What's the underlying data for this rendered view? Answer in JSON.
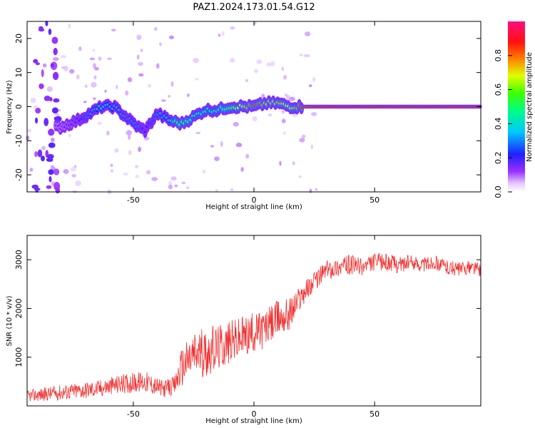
{
  "figure": {
    "title": "PAZ1.2024.173.01.54.G12"
  },
  "chart_data": [
    {
      "type": "heatmap",
      "title": "PAZ1.2024.173.01.54.G12",
      "xlabel": "Height of straight line (km)",
      "ylabel": "Frequency (Hz)",
      "xlim": [
        -94,
        94
      ],
      "ylim": [
        -25,
        25
      ],
      "x_ticks": [
        -50,
        0,
        50
      ],
      "y_ticks": [
        -20,
        -10,
        0,
        10,
        20
      ],
      "colorbar": {
        "label": "Normalized spectral amplitude",
        "ticks": [
          0.0,
          0.2,
          0.4,
          0.6,
          0.8
        ],
        "range": [
          0,
          1
        ],
        "colormap": "gist_rainbow"
      },
      "ridge": {
        "description_points_x_km": [
          -80,
          -73,
          -68,
          -63,
          -58,
          -53,
          -48,
          -45,
          -40,
          -35,
          -30,
          -25,
          -20,
          -15,
          -10,
          -5,
          0,
          5,
          10,
          15,
          20,
          30,
          40,
          50,
          60,
          70,
          80,
          90
        ],
        "frequency_hz": [
          -6,
          -4,
          -2,
          0,
          0,
          -3,
          -6,
          -7,
          -2,
          -4,
          -5,
          -3,
          -1,
          -1,
          0,
          0,
          0,
          1,
          1,
          0,
          0,
          0,
          0,
          0,
          0,
          0,
          0,
          0
        ],
        "amplitude": [
          0.15,
          0.2,
          0.3,
          0.4,
          0.35,
          0.3,
          0.3,
          0.2,
          0.3,
          0.4,
          0.55,
          0.45,
          0.45,
          0.45,
          0.55,
          0.7,
          0.85,
          0.75,
          0.75,
          0.7,
          0.85,
          0.9,
          0.9,
          0.9,
          0.9,
          0.9,
          0.9,
          0.9
        ]
      }
    },
    {
      "type": "line",
      "xlabel": "Height of straight line (km)",
      "ylabel": "SNR (10 * v/v)",
      "xlim": [
        -94,
        94
      ],
      "ylim": [
        0,
        3500
      ],
      "x_ticks": [
        -50,
        0,
        50
      ],
      "y_ticks": [
        1000,
        2000,
        3000
      ],
      "line_color": "#f03030",
      "series": [
        {
          "x": [
            -94,
            -85,
            -75,
            -65,
            -55,
            -45,
            -38,
            -33,
            -30,
            -25,
            -20,
            -15,
            -10,
            -5,
            0,
            5,
            10,
            15,
            20,
            25,
            30,
            35,
            40,
            45,
            50,
            55,
            60,
            65,
            70,
            75,
            80,
            85,
            90,
            94
          ],
          "y": [
            200,
            250,
            300,
            350,
            450,
            500,
            350,
            400,
            800,
            1050,
            1100,
            1200,
            1300,
            1400,
            1500,
            1600,
            1800,
            1900,
            2300,
            2550,
            2800,
            2850,
            2900,
            2850,
            2950,
            2950,
            2900,
            2950,
            2900,
            2950,
            2850,
            2800,
            2850,
            2800
          ],
          "noise_amplitude": [
            120,
            150,
            170,
            180,
            200,
            220,
            180,
            200,
            400,
            500,
            500,
            480,
            450,
            450,
            420,
            400,
            380,
            350,
            250,
            200,
            200,
            200,
            200,
            180,
            180,
            180,
            180,
            150,
            150,
            150,
            150,
            150,
            150,
            150
          ]
        }
      ]
    }
  ]
}
